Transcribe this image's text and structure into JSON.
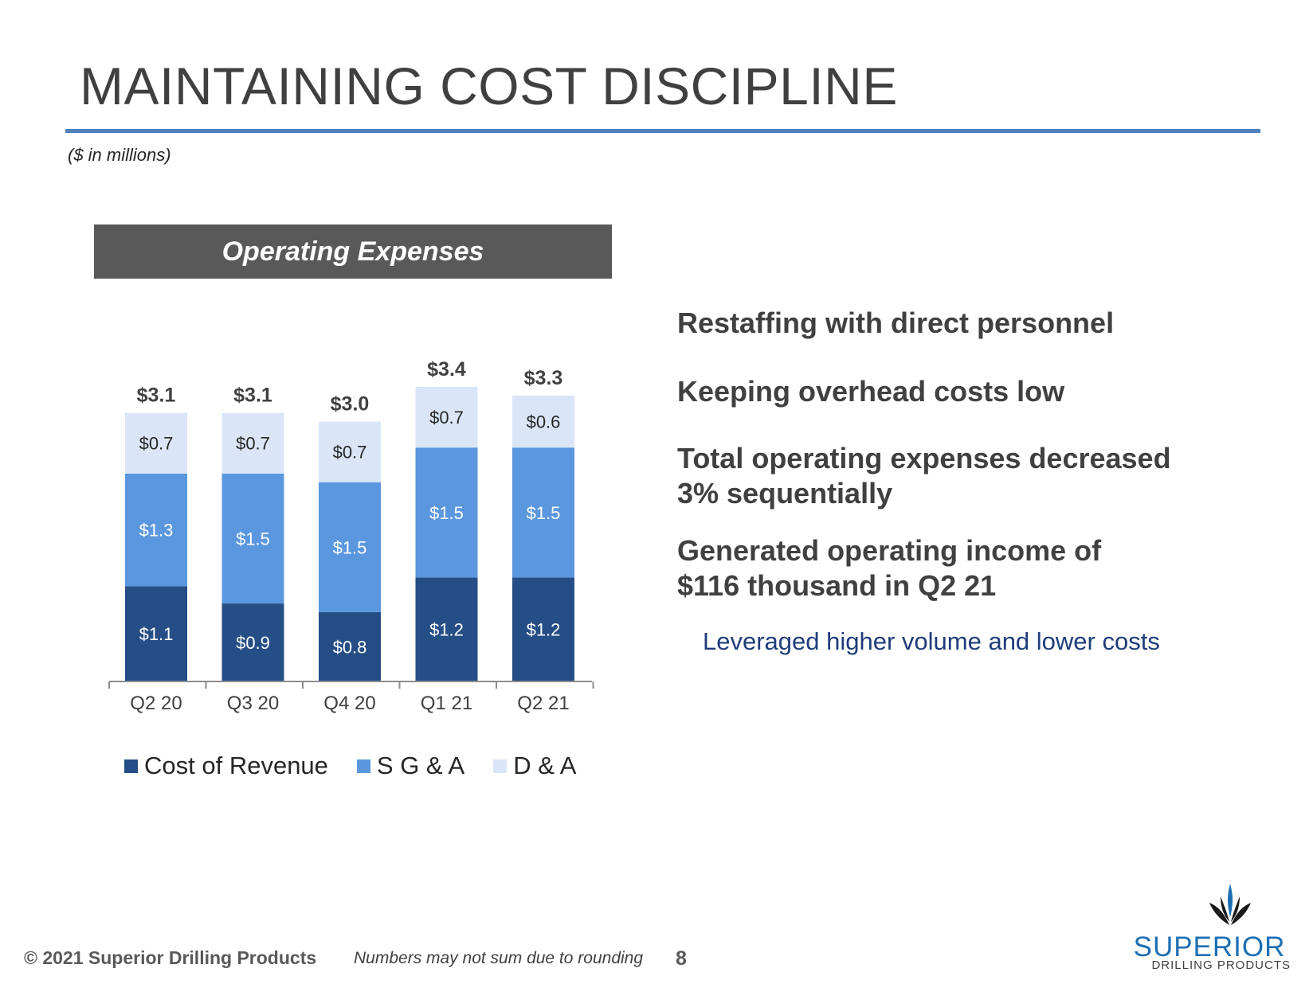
{
  "slide": {
    "title": "MAINTAINING COST DISCIPLINE",
    "units": "($ in millions)",
    "chart_header": "Operating Expenses"
  },
  "colors": {
    "accent_rule": "#4f81bd",
    "cost_of_revenue": "#264e86",
    "sga": "#5b97de",
    "da": "#dae6f7",
    "header_bg": "#595959",
    "sub_bullet_text": "#1f3d7a",
    "logo_blue": "#1e6fb3"
  },
  "chart_data": {
    "type": "bar",
    "stacked": true,
    "title": "Operating Expenses",
    "categories": [
      "Q2 20",
      "Q3 20",
      "Q4 20",
      "Q1 21",
      "Q2 21"
    ],
    "series": [
      {
        "name": "Cost of Revenue",
        "values": [
          1.1,
          0.9,
          0.8,
          1.2,
          1.2
        ],
        "labels": [
          "$1.1",
          "$0.9",
          "$0.8",
          "$1.2",
          "$1.2"
        ],
        "color": "#264e86",
        "label_color": "#ffffff"
      },
      {
        "name": "S G & A",
        "values": [
          1.3,
          1.5,
          1.5,
          1.5,
          1.5
        ],
        "labels": [
          "$1.3",
          "$1.5",
          "$1.5",
          "$1.5",
          "$1.5"
        ],
        "color": "#5b97de",
        "label_color": "#ffffff"
      },
      {
        "name": "D & A",
        "values": [
          0.7,
          0.7,
          0.7,
          0.7,
          0.6
        ],
        "labels": [
          "$0.7",
          "$0.7",
          "$0.7",
          "$0.7",
          "$0.6"
        ],
        "color": "#dae6f7",
        "label_color": "#262626"
      }
    ],
    "totals": [
      3.1,
      3.1,
      3.0,
      3.4,
      3.3
    ],
    "total_labels": [
      "$3.1",
      "$3.1",
      "$3.0",
      "$3.4",
      "$3.3"
    ],
    "ylim": [
      0,
      3.4
    ],
    "grid": false,
    "legend": "bottom"
  },
  "bullets": [
    "Restaffing with direct personnel",
    "Keeping overhead costs low",
    "Total operating expenses decreased 3% sequentially",
    "Generated operating income of $116 thousand in Q2 21"
  ],
  "sub_bullet": "Leveraged higher volume and lower costs",
  "footer": {
    "copyright": "© 2021 Superior Drilling Products",
    "note": "Numbers may not sum due to rounding",
    "page": "8"
  },
  "logo": {
    "word": "SUPERIOR",
    "sub": "DRILLING PRODUCTS"
  }
}
